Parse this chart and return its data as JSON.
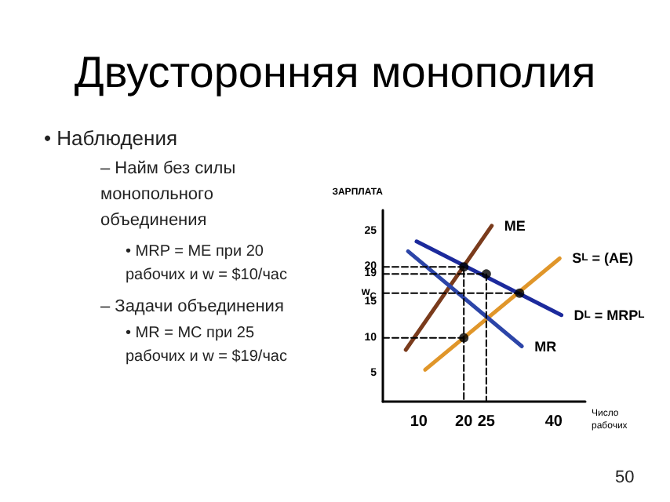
{
  "chart_data": {
    "type": "line",
    "title": "Двусторонняя монополия",
    "annotations": [
      "• Наблюдения",
      "– Найм без силы\nмонопольного\nобъединения",
      "• MRP = ME при 20\nрабочих и w = $10/час",
      "– Задачи объединения",
      "• MR = MC при 25\nрабочих и w = $19/час",
      "50"
    ],
    "xlabel": "Число рабочих",
    "ylabel": "ЗАРПЛАТА",
    "xlim": [
      2,
      47
    ],
    "ylim": [
      1,
      28
    ],
    "xticks": [
      10,
      20,
      25,
      40
    ],
    "yticks": [
      5,
      10,
      15,
      {
        "value": 16.3,
        "label": "w$_{C}$"
      },
      19,
      20,
      25
    ],
    "series": [
      {
        "name": "ME",
        "color": "#7a3b1c",
        "x": [
          7.1,
          26.2
        ],
        "values": [
          8.3,
          25.8
        ]
      },
      {
        "name": "S$_{L}$ = (AE)",
        "color": "#e0962a",
        "x": [
          11.4,
          41.3
        ],
        "values": [
          5.5,
          21.2
        ]
      },
      {
        "name": "D$_{L}$ = MRP$_{L}$",
        "color": "#1c2a9c",
        "x": [
          9.5,
          41.7
        ],
        "values": [
          23.6,
          13.2
        ]
      },
      {
        "name": "MR",
        "color": "#2c45a8",
        "x": [
          7.6,
          32.9
        ],
        "values": [
          22.2,
          8.8
        ]
      },
      {
        "color": "#000000",
        "line_style": "dashed",
        "x": [
          2,
          20,
          20
        ],
        "values": [
          20,
          20,
          1
        ]
      },
      {
        "color": "#000000",
        "line_style": "dashed",
        "x": [
          2,
          25,
          25
        ],
        "values": [
          19,
          19,
          1
        ]
      },
      {
        "color": "#000000",
        "line_style": "dashed",
        "x": [
          2,
          32.4
        ],
        "values": [
          16.3,
          16.3
        ]
      },
      {
        "color": "#000000",
        "line_style": "dashed",
        "x": [
          2,
          20
        ],
        "values": [
          10,
          10
        ]
      },
      {
        "type": "scatter",
        "color": "#000000",
        "marker": "circle",
        "x": [
          20,
          25,
          32.4,
          20
        ],
        "values": [
          20,
          19,
          16.3,
          10
        ]
      }
    ],
    "legend": false,
    "grid": false
  }
}
